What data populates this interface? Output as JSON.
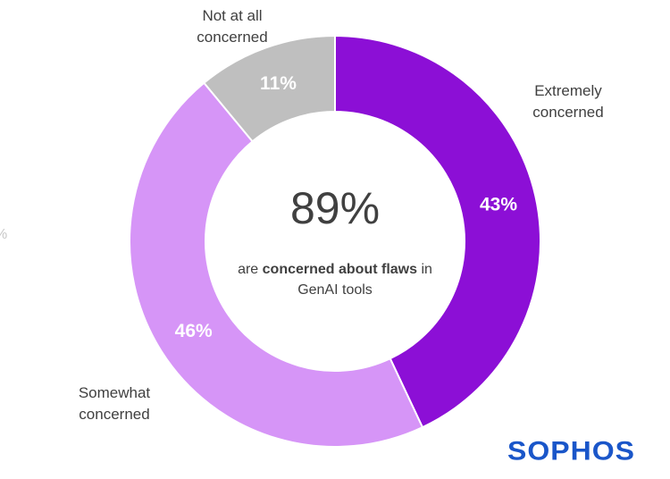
{
  "chart_data": {
    "type": "pie",
    "categories": [
      "Extremely concerned",
      "Somewhat concerned",
      "Not at all concerned"
    ],
    "category_lines": [
      [
        "Extremely",
        "concerned"
      ],
      [
        "Somewhat",
        "concerned"
      ],
      [
        "Not at all",
        "concerned"
      ]
    ],
    "values": [
      43,
      46,
      11
    ],
    "value_labels": [
      "43%",
      "46%",
      "11%"
    ],
    "colors": [
      "#8c0fd6",
      "#d695f7",
      "#bfbfbf"
    ],
    "donut": true,
    "center_value": "89%",
    "center_caption": {
      "prefix": "are ",
      "bold": "concerned about flaws",
      "suffix": " in",
      "line2": "GenAI tools"
    }
  },
  "edge_fragment": "%",
  "logo_text": "SOPHOS",
  "colors": {
    "text": "#404040",
    "logo": "#1a56c9",
    "background": "#ffffff"
  }
}
